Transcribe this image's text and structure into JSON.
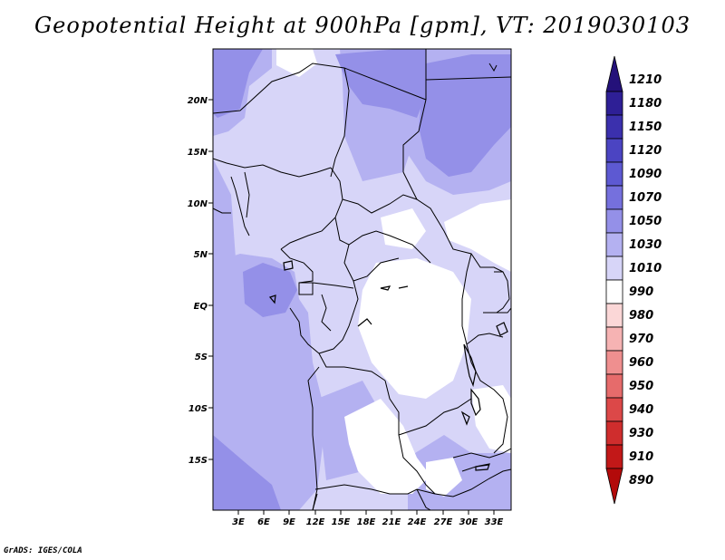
{
  "title": "Geopotential Height at 900hPa [gpm], VT: 2019030103",
  "credit": "GrADS: IGES/COLA",
  "map": {
    "lat_labels": [
      "20N",
      "15N",
      "10N",
      "5N",
      "EQ",
      "5S",
      "10S",
      "15S"
    ],
    "lon_labels": [
      "3E",
      "6E",
      "9E",
      "12E",
      "15E",
      "18E",
      "21E",
      "24E",
      "27E",
      "30E",
      "33E"
    ]
  },
  "colorbar": {
    "labels": [
      "1210",
      "1180",
      "1150",
      "1120",
      "1090",
      "1070",
      "1050",
      "1030",
      "1010",
      "990",
      "980",
      "970",
      "960",
      "950",
      "940",
      "930",
      "910",
      "890"
    ],
    "colors": [
      "#24117a",
      "#2e1f96",
      "#3b30ad",
      "#4b44c2",
      "#5d59d2",
      "#7570dd",
      "#9490e8",
      "#b4b1f1",
      "#d7d5f8",
      "#ffffff",
      "#fbd7d7",
      "#f6b3b3",
      "#ef8f8f",
      "#e66b6b",
      "#dc4848",
      "#cf2d2d",
      "#c21818",
      "#b30a0a"
    ]
  },
  "chart_data": {
    "type": "heatmap",
    "title": "Geopotential Height at 900hPa [gpm], VT: 2019030103",
    "variable": "Geopotential Height at 900hPa",
    "units": "gpm",
    "valid_time": "2019030103",
    "lon_range": [
      0,
      35
    ],
    "lat_range": [
      -20,
      25
    ],
    "lat_ticks": [
      "20N",
      "15N",
      "10N",
      "5N",
      "EQ",
      "5S",
      "10S",
      "15S"
    ],
    "lon_ticks": [
      "3E",
      "6E",
      "9E",
      "12E",
      "15E",
      "18E",
      "21E",
      "24E",
      "27E",
      "30E",
      "33E"
    ],
    "color_levels": [
      1210,
      1180,
      1150,
      1120,
      1090,
      1070,
      1050,
      1030,
      1010,
      990,
      980,
      970,
      960,
      950,
      940,
      930,
      910,
      890
    ],
    "dominant_range": "1010-1070 gpm; highest (1050-1070) in the northeast, lowest (990-1010) over Central African Republic, Congo basin interior and Zambia"
  }
}
